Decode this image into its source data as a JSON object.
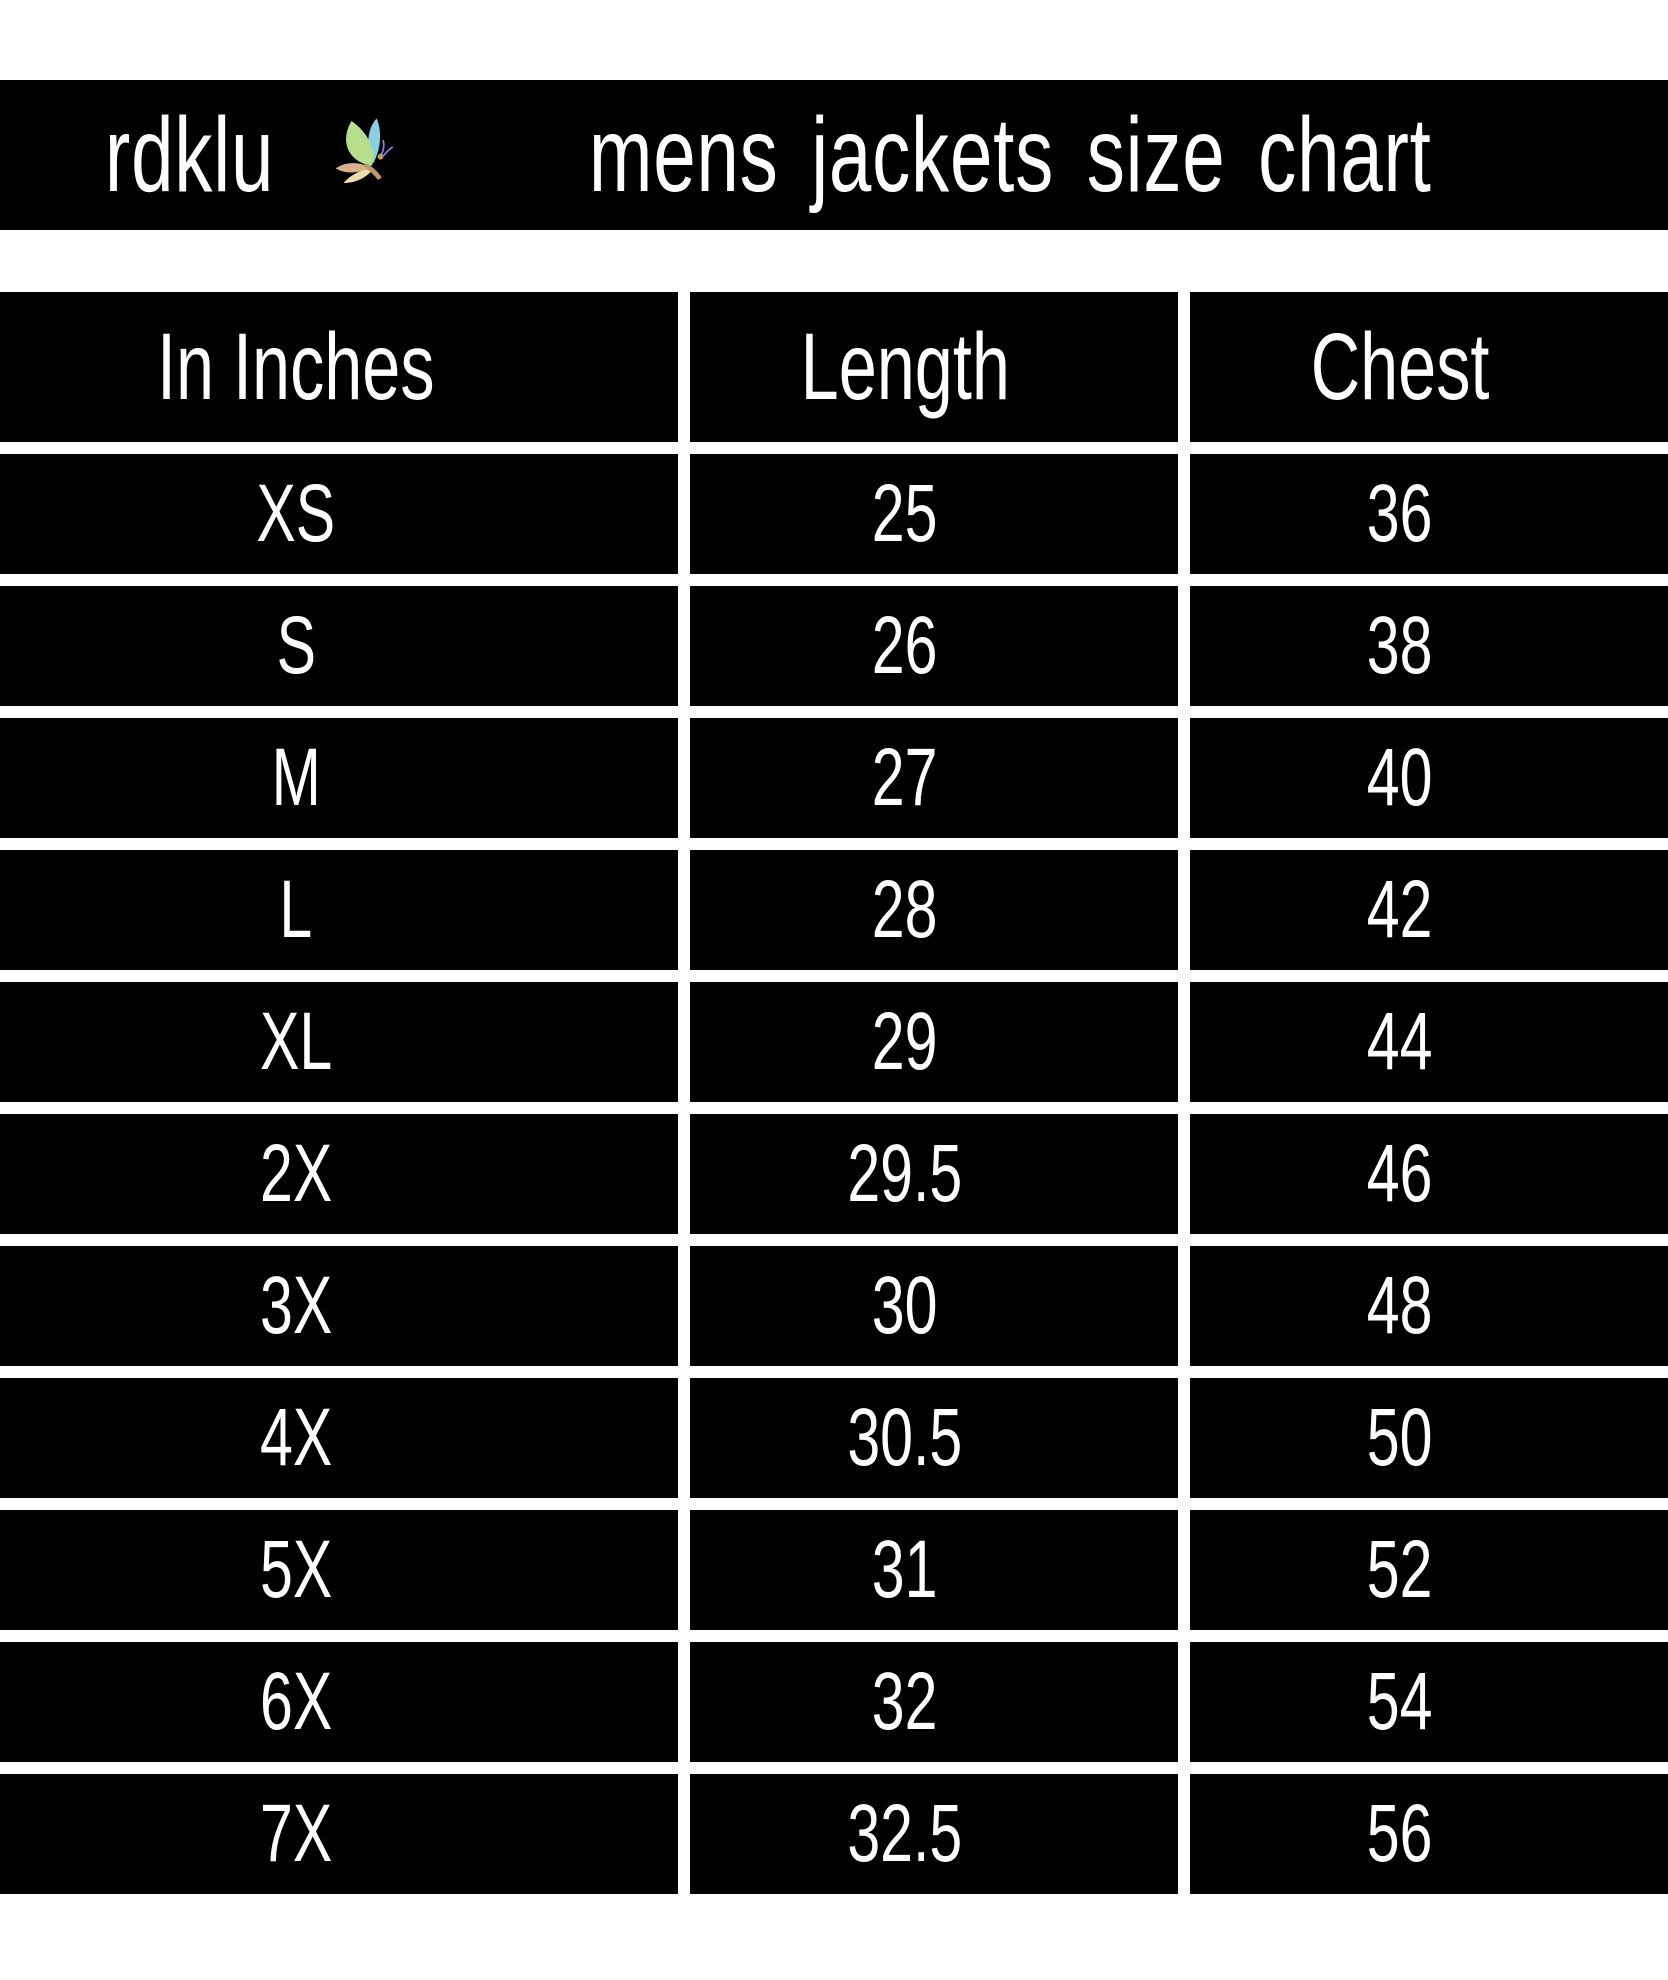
{
  "header": {
    "brand": "rdklu",
    "icon": "butterfly-icon",
    "title_rest": "mens jackets size chart"
  },
  "chart_data": {
    "type": "table",
    "title": "rdklu mens jackets size chart",
    "unit": "In Inches",
    "columns": [
      "In Inches",
      "Length",
      "Chest"
    ],
    "rows": [
      [
        "XS",
        "25",
        "36"
      ],
      [
        "S",
        "26",
        "38"
      ],
      [
        "M",
        "27",
        "40"
      ],
      [
        "L",
        "28",
        "42"
      ],
      [
        "XL",
        "29",
        "44"
      ],
      [
        "2X",
        "29.5",
        "46"
      ],
      [
        "3X",
        "30",
        "48"
      ],
      [
        "4X",
        "30.5",
        "50"
      ],
      [
        "5X",
        "31",
        "52"
      ],
      [
        "6X",
        "32",
        "54"
      ],
      [
        "7X",
        "32.5",
        "56"
      ]
    ]
  },
  "colors": {
    "page_bg": "#ffffff",
    "cell_bg": "#000000",
    "cell_fg": "#ffffff",
    "butterfly_blue": "#8ccfe4",
    "butterfly_green": "#b5df8d",
    "butterfly_tan": "#d9b189",
    "butterfly_cream": "#eedcb2",
    "butterfly_body": "#c09868",
    "butterfly_antennae": "#8286d8"
  }
}
